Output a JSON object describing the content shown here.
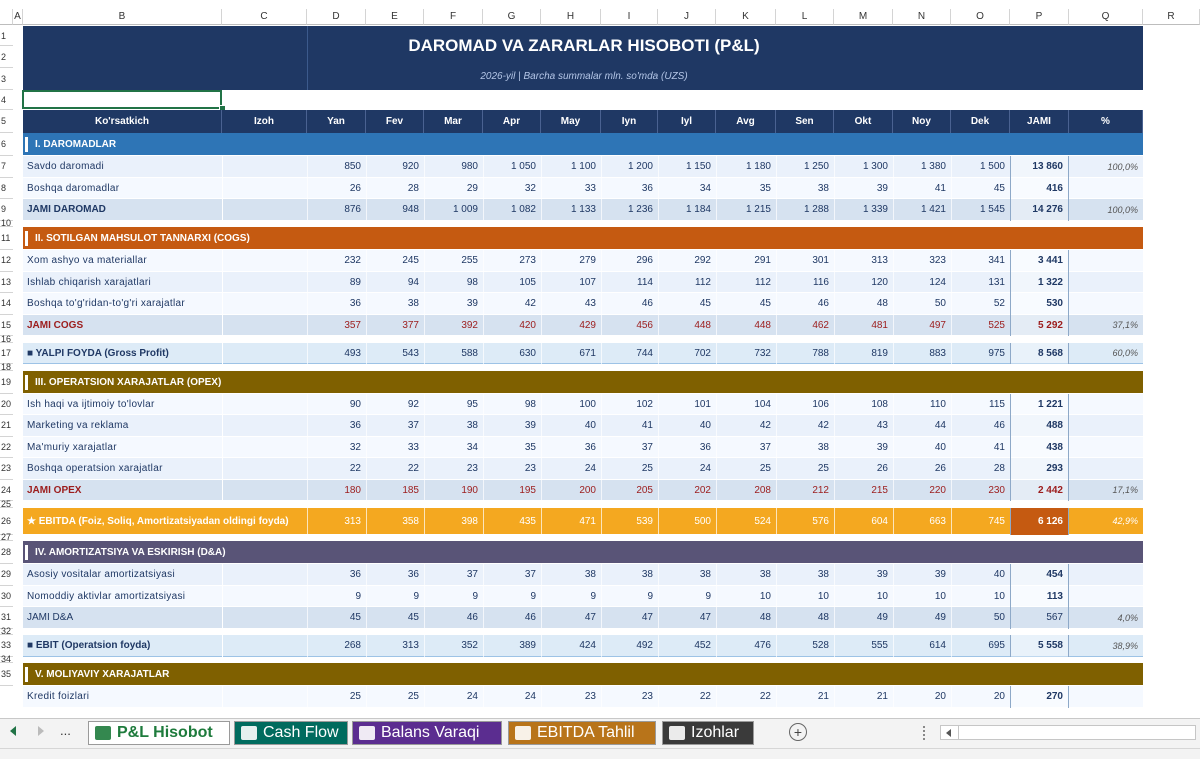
{
  "sheet": {
    "column_letters": [
      "A",
      "B",
      "C",
      "D",
      "E",
      "F",
      "G",
      "H",
      "I",
      "J",
      "K",
      "L",
      "M",
      "N",
      "O",
      "P",
      "Q",
      "R"
    ],
    "row_numbers": [
      "1",
      "2",
      "3",
      "4",
      "5",
      "6",
      "7",
      "8",
      "9",
      "10",
      "11",
      "12",
      "13",
      "14",
      "15",
      "16",
      "17",
      "18",
      "19",
      "20",
      "21",
      "22",
      "23",
      "24",
      "25",
      "26",
      "27",
      "28",
      "29",
      "30",
      "31",
      "32",
      "33",
      "34",
      "35"
    ]
  },
  "report": {
    "title": "DAROMAD VA ZARARLAR HISOBOTI (P&L)",
    "subtitle": "2026-yil | Barcha summalar mln. so'mda (UZS)"
  },
  "header": {
    "indicator": "Ko'rsatkich",
    "note": "Izoh",
    "months": [
      "Yan",
      "Fev",
      "Mar",
      "Apr",
      "May",
      "Iyn",
      "Iyl",
      "Avg",
      "Sen",
      "Okt",
      "Noy",
      "Dek"
    ],
    "total": "JAMI",
    "pct": "%"
  },
  "rows": [
    {
      "type": "section",
      "label": "I. DAROMADLAR",
      "color": "#2e75b6"
    },
    {
      "type": "data",
      "label": "Savdo daromadi",
      "values": [
        "850",
        "920",
        "980",
        "1 050",
        "1 100",
        "1 200",
        "1 150",
        "1 180",
        "1 250",
        "1 300",
        "1 380",
        "1 500"
      ],
      "total": "13 860",
      "pct": "100,0%"
    },
    {
      "type": "data",
      "label": "Boshqa daromadlar",
      "values": [
        "26",
        "28",
        "29",
        "32",
        "33",
        "36",
        "34",
        "35",
        "38",
        "39",
        "41",
        "45"
      ],
      "total": "416",
      "pct": ""
    },
    {
      "type": "subtotal",
      "label": "JAMI DAROMAD",
      "values": [
        "876",
        "948",
        "1 009",
        "1 082",
        "1 133",
        "1 236",
        "1 184",
        "1 215",
        "1 288",
        "1 339",
        "1 421",
        "1 545"
      ],
      "total": "14 276",
      "pct": "100,0%"
    },
    {
      "type": "spacer"
    },
    {
      "type": "section",
      "label": "II. SOTILGAN MAHSULOT TANNARXI (COGS)",
      "color": "#c55a11"
    },
    {
      "type": "data",
      "label": "Xom ashyo va materiallar",
      "values": [
        "232",
        "245",
        "255",
        "273",
        "279",
        "296",
        "292",
        "291",
        "301",
        "313",
        "323",
        "341"
      ],
      "total": "3 441",
      "pct": ""
    },
    {
      "type": "data",
      "label": "Ishlab chiqarish xarajatlari",
      "values": [
        "89",
        "94",
        "98",
        "105",
        "107",
        "114",
        "112",
        "112",
        "116",
        "120",
        "124",
        "131"
      ],
      "total": "1 322",
      "pct": ""
    },
    {
      "type": "data",
      "label": "Boshqa to'g'ridan-to'g'ri xarajatlar",
      "values": [
        "36",
        "38",
        "39",
        "42",
        "43",
        "46",
        "45",
        "45",
        "46",
        "48",
        "50",
        "52"
      ],
      "total": "530",
      "pct": ""
    },
    {
      "type": "subtotal-red",
      "label": "JAMI COGS",
      "values": [
        "357",
        "377",
        "392",
        "420",
        "429",
        "456",
        "448",
        "448",
        "462",
        "481",
        "497",
        "525"
      ],
      "total": "5 292",
      "pct": "37,1%"
    },
    {
      "type": "spacer"
    },
    {
      "type": "highlight",
      "label": "■ YALPI FOYDA (Gross Profit)",
      "values": [
        "493",
        "543",
        "588",
        "630",
        "671",
        "744",
        "702",
        "732",
        "788",
        "819",
        "883",
        "975"
      ],
      "total": "8 568",
      "pct": "60,0%"
    },
    {
      "type": "spacer"
    },
    {
      "type": "section",
      "label": "III. OPERATSION XARAJATLAR (OPEX)",
      "color": "#7f6000"
    },
    {
      "type": "data",
      "label": "Ish haqi va ijtimoiy to'lovlar",
      "values": [
        "90",
        "92",
        "95",
        "98",
        "100",
        "102",
        "101",
        "104",
        "106",
        "108",
        "110",
        "115"
      ],
      "total": "1 221",
      "pct": ""
    },
    {
      "type": "data",
      "label": "Marketing va reklama",
      "values": [
        "36",
        "37",
        "38",
        "39",
        "40",
        "41",
        "40",
        "42",
        "42",
        "43",
        "44",
        "46"
      ],
      "total": "488",
      "pct": ""
    },
    {
      "type": "data",
      "label": "Ma'muriy xarajatlar",
      "values": [
        "32",
        "33",
        "34",
        "35",
        "36",
        "37",
        "36",
        "37",
        "38",
        "39",
        "40",
        "41"
      ],
      "total": "438",
      "pct": ""
    },
    {
      "type": "data",
      "label": "Boshqa operatsion xarajatlar",
      "values": [
        "22",
        "22",
        "23",
        "23",
        "24",
        "25",
        "24",
        "25",
        "25",
        "26",
        "26",
        "28"
      ],
      "total": "293",
      "pct": ""
    },
    {
      "type": "subtotal-red",
      "label": "JAMI OPEX",
      "values": [
        "180",
        "185",
        "190",
        "195",
        "200",
        "205",
        "202",
        "208",
        "212",
        "215",
        "220",
        "230"
      ],
      "total": "2 442",
      "pct": "17,1%"
    },
    {
      "type": "spacer"
    },
    {
      "type": "ebitda",
      "label": "★ EBITDA (Foiz, Soliq, Amortizatsiyadan oldingi foyda)",
      "values": [
        "313",
        "358",
        "398",
        "435",
        "471",
        "539",
        "500",
        "524",
        "576",
        "604",
        "663",
        "745"
      ],
      "total": "6 126",
      "pct": "42,9%"
    },
    {
      "type": "spacer"
    },
    {
      "type": "section",
      "label": "IV. AMORTIZATSIYA VA ESKIRISH (D&A)",
      "color": "#595477"
    },
    {
      "type": "data",
      "label": "Asosiy vositalar amortizatsiyasi",
      "values": [
        "36",
        "36",
        "37",
        "37",
        "38",
        "38",
        "38",
        "38",
        "38",
        "39",
        "39",
        "40"
      ],
      "total": "454",
      "pct": ""
    },
    {
      "type": "data",
      "label": "Nomoddiy aktivlar amortizatsiyasi",
      "values": [
        "9",
        "9",
        "9",
        "9",
        "9",
        "9",
        "9",
        "10",
        "10",
        "10",
        "10",
        "10"
      ],
      "total": "113",
      "pct": ""
    },
    {
      "type": "subtotal-plain",
      "label": "JAMI D&A",
      "values": [
        "45",
        "45",
        "46",
        "46",
        "47",
        "47",
        "47",
        "48",
        "48",
        "49",
        "49",
        "50"
      ],
      "total": "567",
      "pct": "4,0%"
    },
    {
      "type": "spacer"
    },
    {
      "type": "highlight",
      "label": "■ EBIT (Operatsion foyda)",
      "values": [
        "268",
        "313",
        "352",
        "389",
        "424",
        "492",
        "452",
        "476",
        "528",
        "555",
        "614",
        "695"
      ],
      "total": "5 558",
      "pct": "38,9%"
    },
    {
      "type": "spacer"
    },
    {
      "type": "section",
      "label": "V. MOLIYAVIY XARAJATLAR",
      "color": "#7f6000"
    },
    {
      "type": "data",
      "label": "Kredit foizlari",
      "values": [
        "25",
        "25",
        "24",
        "24",
        "23",
        "23",
        "22",
        "22",
        "21",
        "21",
        "20",
        "20"
      ],
      "total": "270",
      "pct": ""
    }
  ],
  "tabs": [
    {
      "label": "P&L Hisobot",
      "icon": "chart-up-icon",
      "color": "#1e7b3c",
      "active": true
    },
    {
      "label": "Cash Flow",
      "icon": "money-bag-icon",
      "color": "#006b5e",
      "active": false
    },
    {
      "label": "Balans Varaqi",
      "icon": "scales-icon",
      "color": "#5b2d90",
      "active": false
    },
    {
      "label": "EBITDA Tahlil",
      "icon": "bar-chart-icon",
      "color": "#b8741a",
      "active": false
    },
    {
      "label": "Izohlar",
      "icon": "clipboard-icon",
      "color": "#3a3a3a",
      "active": false
    }
  ],
  "tab_nav": {
    "ellipsis": "...",
    "add": "+"
  }
}
